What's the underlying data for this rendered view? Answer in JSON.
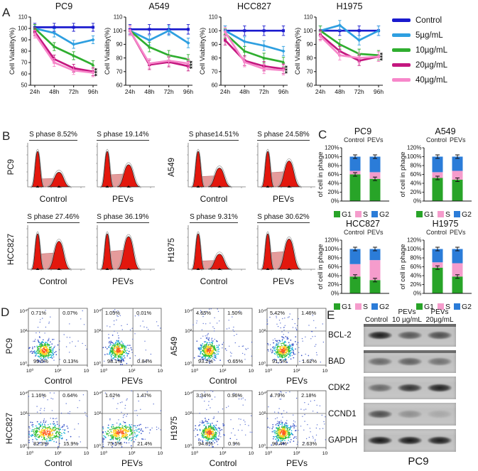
{
  "panel_a": {
    "label": "A",
    "ylabel": "Cell Viability(%)",
    "x_ticks": [
      "24h",
      "48h",
      "72h",
      "96h"
    ],
    "significance": "***",
    "legend": [
      {
        "label": "Control",
        "color": "#1a1ace"
      },
      {
        "label": "5µg/mL",
        "color": "#2e9fe0"
      },
      {
        "label": "10µg/mL",
        "color": "#2fae2f"
      },
      {
        "label": "20µg/mL",
        "color": "#c4177f"
      },
      {
        "label": "40µg/mL",
        "color": "#f787ca"
      }
    ],
    "charts": [
      {
        "title": "PC9",
        "ylim": [
          50,
          110
        ],
        "yticks": [
          50,
          60,
          70,
          80,
          90,
          100,
          110
        ],
        "series": [
          [
            101,
            101,
            101,
            101
          ],
          [
            100,
            96,
            86,
            90
          ],
          [
            100,
            84,
            76,
            68
          ],
          [
            97,
            73,
            65,
            62
          ],
          [
            95,
            70,
            63,
            61
          ]
        ]
      },
      {
        "title": "A549",
        "ylim": [
          60,
          110
        ],
        "yticks": [
          60,
          70,
          80,
          90,
          100,
          110
        ],
        "series": [
          [
            101,
            101,
            101,
            101
          ],
          [
            100,
            93,
            100,
            91
          ],
          [
            100,
            88,
            82,
            79
          ],
          [
            100,
            75,
            77,
            74
          ],
          [
            100,
            76,
            78,
            76
          ]
        ]
      },
      {
        "title": "HCC827",
        "ylim": [
          60,
          110
        ],
        "yticks": [
          60,
          70,
          80,
          90,
          100,
          110
        ],
        "series": [
          [
            100,
            100,
            100,
            100
          ],
          [
            100,
            92,
            89,
            85
          ],
          [
            98,
            85,
            80,
            77
          ],
          [
            93,
            78,
            74,
            72
          ],
          [
            99,
            77,
            72,
            71
          ]
        ]
      },
      {
        "title": "H1975",
        "ylim": [
          60,
          110
        ],
        "yticks": [
          60,
          70,
          80,
          90,
          100,
          110
        ],
        "series": [
          [
            100,
            100,
            100,
            100
          ],
          [
            100,
            104,
            93,
            100
          ],
          [
            100,
            90,
            83,
            82
          ],
          [
            97,
            85,
            78,
            81
          ],
          [
            96,
            82,
            80,
            81
          ]
        ]
      }
    ]
  },
  "panel_b": {
    "label": "B",
    "rows": [
      {
        "groups": [
          {
            "cell_line": "PC9",
            "plots": [
              {
                "s_phase": "S phase 8.52%",
                "condition": "Control"
              },
              {
                "s_phase": "S phase 19.14%",
                "condition": "PEVs"
              }
            ]
          },
          {
            "cell_line": "A549",
            "plots": [
              {
                "s_phase": "S phase14.51%",
                "condition": "Control"
              },
              {
                "s_phase": "S phase 24.58%",
                "condition": "PEVs"
              }
            ]
          }
        ]
      },
      {
        "groups": [
          {
            "cell_line": "HCC827",
            "plots": [
              {
                "s_phase": "S phase 27.46%",
                "condition": "Control"
              },
              {
                "s_phase": "S phase 36.19%",
                "condition": "PEVs"
              }
            ]
          },
          {
            "cell_line": "H1975",
            "plots": [
              {
                "s_phase": "S phase 9.31%",
                "condition": "Control"
              },
              {
                "s_phase": "S phase 30.62%",
                "condition": "PEVs"
              }
            ]
          }
        ]
      }
    ]
  },
  "panel_c": {
    "label": "C",
    "ylabel": "of cell in phage",
    "yticks": [
      "0%",
      "20%",
      "40%",
      "60%",
      "80%",
      "100%",
      "120%"
    ],
    "conditions": [
      "Control",
      "PEVs"
    ],
    "legend": [
      {
        "label": "G1",
        "color": "#28a428"
      },
      {
        "label": "S",
        "color": "#f59ccc"
      },
      {
        "label": "G2",
        "color": "#2b7cd8"
      }
    ],
    "charts": [
      {
        "title": "PC9",
        "bars": [
          {
            "G1": 60,
            "S": 8,
            "G2": 32
          },
          {
            "G1": 50,
            "S": 15,
            "G2": 35
          }
        ]
      },
      {
        "title": "A549",
        "bars": [
          {
            "G1": 52,
            "S": 13,
            "G2": 35
          },
          {
            "G1": 48,
            "S": 20,
            "G2": 32
          }
        ]
      },
      {
        "title": "HCC827",
        "bars": [
          {
            "G1": 38,
            "S": 28,
            "G2": 34
          },
          {
            "G1": 30,
            "S": 45,
            "G2": 25
          }
        ]
      },
      {
        "title": "H1975",
        "bars": [
          {
            "G1": 58,
            "S": 12,
            "G2": 30
          },
          {
            "G1": 38,
            "S": 30,
            "G2": 32
          }
        ]
      }
    ]
  },
  "panel_d": {
    "label": "D",
    "axis_ticks": [
      "10⁰",
      "10²",
      "10⁴"
    ],
    "rows": [
      {
        "groups": [
          {
            "cell_line": "PC9",
            "plots": [
              {
                "condition": "Control",
                "tl": "0.71%",
                "tr": "0.07%",
                "bl": "99.0%",
                "br": "0.13%"
              },
              {
                "condition": "PEVs",
                "tl": "1.05%",
                "tr": "0.01%",
                "bl": "98.1%",
                "br": "0.84%"
              }
            ]
          },
          {
            "cell_line": "A549",
            "plots": [
              {
                "condition": "Control",
                "tl": "4.65%",
                "tr": "1.50%",
                "bl": "93.2%",
                "br": "0.65%"
              },
              {
                "condition": "PEVs",
                "tl": "5.42%",
                "tr": "1.46%",
                "bl": "91.5%",
                "br": "1.62%"
              }
            ]
          }
        ]
      },
      {
        "groups": [
          {
            "cell_line": "HCC827",
            "plots": [
              {
                "condition": "Control",
                "tl": "1.16%",
                "tr": "0.64%",
                "bl": "82.3%",
                "br": "15.9%"
              },
              {
                "condition": "PEVs",
                "tl": "1.62%",
                "tr": "1.47%",
                "bl": "75.5%",
                "br": "21.4%"
              }
            ]
          },
          {
            "cell_line": "H1975",
            "plots": [
              {
                "condition": "Control",
                "tl": "3.34%",
                "tr": "0.96%",
                "bl": "94.8%",
                "br": "0.9%"
              },
              {
                "condition": "PEVs",
                "tl": "4.79%",
                "tr": "2.18%",
                "bl": "90.4%",
                "br": "2.63%"
              }
            ]
          }
        ]
      }
    ]
  },
  "panel_e": {
    "label": "E",
    "col_headers": [
      "Control",
      "PEVs\n10 µg/mL",
      "PEVs\n20µg/mL"
    ],
    "rows": [
      {
        "protein": "BCL-2",
        "bands": [
          0.92,
          0.6,
          0.65
        ],
        "darktop": true
      },
      {
        "protein": "BAD",
        "bands": [
          0.5,
          0.55,
          0.45
        ],
        "darktop": true
      },
      {
        "protein": "CDK2",
        "bands": [
          0.5,
          0.8,
          0.9
        ],
        "darktop": false
      },
      {
        "protein": "CCND1",
        "bands": [
          0.65,
          0.28,
          0.14
        ],
        "darktop": false
      },
      {
        "protein": "GAPDH",
        "bands": [
          0.95,
          0.95,
          0.92
        ],
        "darktop": false
      }
    ],
    "cell_line": "PC9"
  }
}
